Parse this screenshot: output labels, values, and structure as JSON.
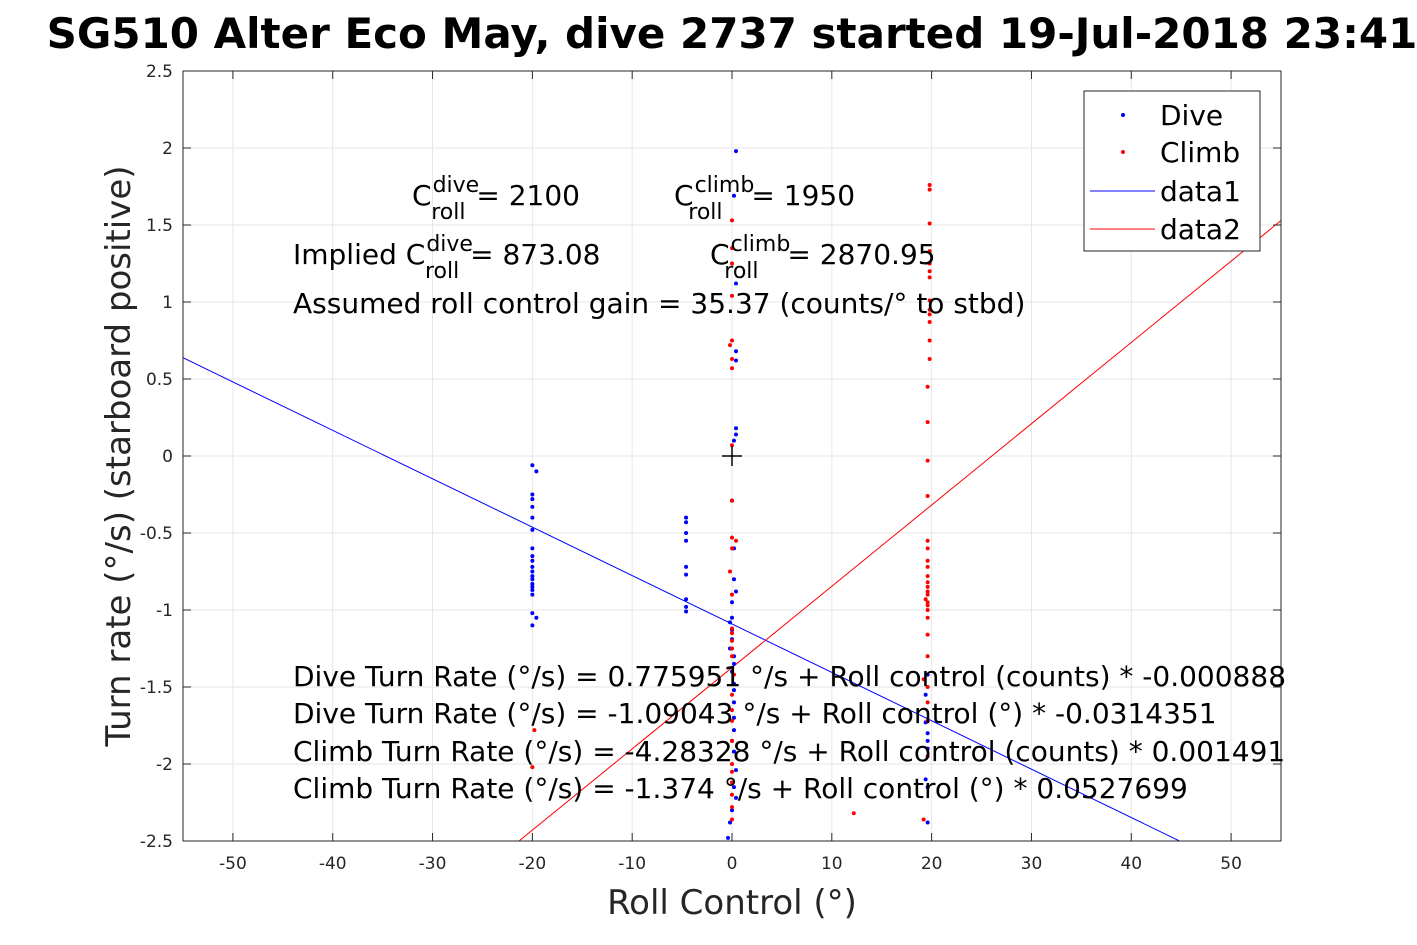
{
  "chart_data": {
    "type": "scatter",
    "title": "SG510 Alter Eco May, dive 2737 started 19-Jul-2018 23:41",
    "xlabel": "Roll Control (°)",
    "ylabel": "Turn rate (°/s) (starboard positive)",
    "xlim": [
      -55,
      55
    ],
    "ylim": [
      -2.5,
      2.5
    ],
    "x_ticks": [
      "-50",
      "-40",
      "-30",
      "-20",
      "-10",
      "0",
      "10",
      "20",
      "30",
      "40",
      "50"
    ],
    "y_ticks": [
      "2.5",
      "2",
      "1.5",
      "1",
      "0.5",
      "0",
      "-0.5",
      "-1",
      "-1.5",
      "-2",
      "-2.5"
    ],
    "grid": true,
    "legend_position": "top-right",
    "marker": {
      "x": 0,
      "y": 0,
      "symbol": "+"
    },
    "series": [
      {
        "name": "Dive",
        "kind": "points",
        "color": "#0000ff",
        "x": [
          -20,
          -19.6,
          -20,
          -20,
          -20,
          -20,
          -20,
          -20,
          -20,
          -20,
          -20,
          -20,
          -20,
          -20,
          -20,
          -20,
          -20,
          -20,
          -20,
          -19.6,
          -20,
          -4.6,
          -4.6,
          -4.6,
          -4.6,
          -4.6,
          -4.6,
          -4.6,
          -4.6,
          -4.6,
          0.4,
          0.2,
          0.4,
          0.4,
          0.4,
          0.4,
          0.4,
          0.2,
          0,
          0.2,
          0.2,
          0,
          0.4,
          0,
          -0.2,
          0,
          0,
          -0.2,
          0.2,
          0.2,
          0,
          0.2,
          0.2,
          0.2,
          0.2,
          0.2,
          0,
          0.2,
          0.4,
          0.2,
          0.4,
          0,
          -0.2,
          -0.4,
          19.6,
          19.4,
          19.4,
          19.6,
          19.6,
          19.6,
          19.4,
          19.6,
          19.6
        ],
        "y": [
          -0.06,
          -0.1,
          -0.25,
          -0.28,
          -0.33,
          -0.4,
          -0.48,
          -0.6,
          -0.65,
          -0.68,
          -0.72,
          -0.75,
          -0.78,
          -0.8,
          -0.83,
          -0.85,
          -0.87,
          -0.9,
          -1.02,
          -1.05,
          -1.1,
          -0.4,
          -0.43,
          -0.5,
          -0.55,
          -0.72,
          -0.77,
          -0.93,
          -1.01,
          -0.98,
          1.98,
          1.69,
          1.12,
          0.68,
          0.62,
          0.18,
          0.14,
          0.1,
          -0.29,
          -0.6,
          -0.8,
          -0.95,
          -0.88,
          -1.05,
          -1.08,
          -1.13,
          -1.19,
          -1.25,
          -1.3,
          -1.35,
          -1.4,
          -1.48,
          -1.52,
          -1.6,
          -1.7,
          -1.78,
          -1.85,
          -1.92,
          -2.04,
          -2.15,
          -2.22,
          -2.3,
          -2.38,
          -2.48,
          -1.42,
          -1.55,
          -1.73,
          -1.8,
          -1.85,
          -1.9,
          -2.1,
          -2.15,
          -2.38
        ]
      },
      {
        "name": "Climb",
        "kind": "points",
        "color": "#ff0000",
        "x": [
          -19.8,
          -20,
          0,
          0,
          0,
          0,
          0,
          -0.2,
          0,
          0,
          0,
          0,
          0.4,
          0,
          0,
          -0.2,
          0,
          0,
          0,
          0,
          0,
          0,
          0.2,
          0,
          0,
          0,
          0,
          0,
          0,
          0,
          0,
          0,
          0,
          12.2,
          19.8,
          19.8,
          19.8,
          19.8,
          19.8,
          19.8,
          19.8,
          19.8,
          19.8,
          19.8,
          19.8,
          19.8,
          19.8,
          19.6,
          19.6,
          19.6,
          19.6,
          19.6,
          19.6,
          19.6,
          19.6,
          19.6,
          19.6,
          19.6,
          19.6,
          19.6,
          19.4,
          19.6,
          19.6,
          19.6,
          19.6,
          19.6,
          19.6,
          19.2,
          19.6,
          19.6,
          19.6,
          19.6,
          19.2
        ],
        "y": [
          -1.78,
          -2.02,
          1.53,
          1.35,
          1.25,
          1.04,
          0.75,
          0.72,
          0.63,
          0.57,
          0.07,
          -0.29,
          -0.55,
          -0.53,
          -0.6,
          -0.75,
          -0.9,
          -1.12,
          -1.15,
          -1.2,
          -1.25,
          -1.3,
          -1.42,
          -1.55,
          -1.65,
          -1.72,
          -1.85,
          -2.0,
          -2.05,
          -2.12,
          -2.2,
          -2.28,
          -2.36,
          -2.32,
          1.76,
          1.73,
          1.51,
          1.33,
          1.25,
          1.2,
          1.16,
          1.01,
          0.95,
          0.92,
          0.87,
          0.75,
          0.63,
          0.45,
          0.22,
          -0.03,
          -0.26,
          -0.55,
          -0.6,
          -0.68,
          -0.72,
          -0.78,
          -0.82,
          -0.85,
          -0.88,
          -0.9,
          -0.93,
          -0.95,
          -0.97,
          -1.0,
          -1.05,
          -1.16,
          -1.3,
          -1.45,
          -1.5,
          -1.6,
          -1.72,
          -1.95,
          -2.36
        ]
      },
      {
        "name": "data1",
        "kind": "line",
        "color": "#0000ff",
        "x": [
          -55,
          45
        ],
        "y": [
          0.638,
          -2.505
        ]
      },
      {
        "name": "data2",
        "kind": "line",
        "color": "#ff0000",
        "x": [
          -25.6,
          55
        ],
        "y": [
          -2.725,
          1.529
        ]
      }
    ],
    "annotations": {
      "c_dive_base": "C",
      "c_dive_sup": "dive",
      "c_dive_sub": "roll",
      "c_dive_value": " = 2100",
      "c_climb_base": "C",
      "c_climb_sup": "climb",
      "c_climb_sub": "roll",
      "c_climb_value": " = 1950",
      "implied_prefix": "Implied C",
      "implied_dive_sup": "dive",
      "implied_dive_sub": "roll",
      "implied_dive_value": " = 873.08",
      "implied_climb_base": "C",
      "implied_climb_sup": "climb",
      "implied_climb_sub": "roll",
      "implied_climb_value": " = 2870.95",
      "gain": "Assumed roll control gain = 35.37 (counts/° to stbd)",
      "eq1": "Dive Turn Rate (°/s) = 0.775951 °/s + Roll control (counts) * -0.000888",
      "eq2": "Dive Turn Rate (°/s) = -1.09043 °/s + Roll control (°) * -0.0314351",
      "eq3": "Climb Turn Rate (°/s) = -4.28328 °/s + Roll control (counts) * 0.001491",
      "eq4": "Climb Turn Rate (°/s) = -1.374 °/s + Roll control (°) * 0.0527699"
    }
  }
}
